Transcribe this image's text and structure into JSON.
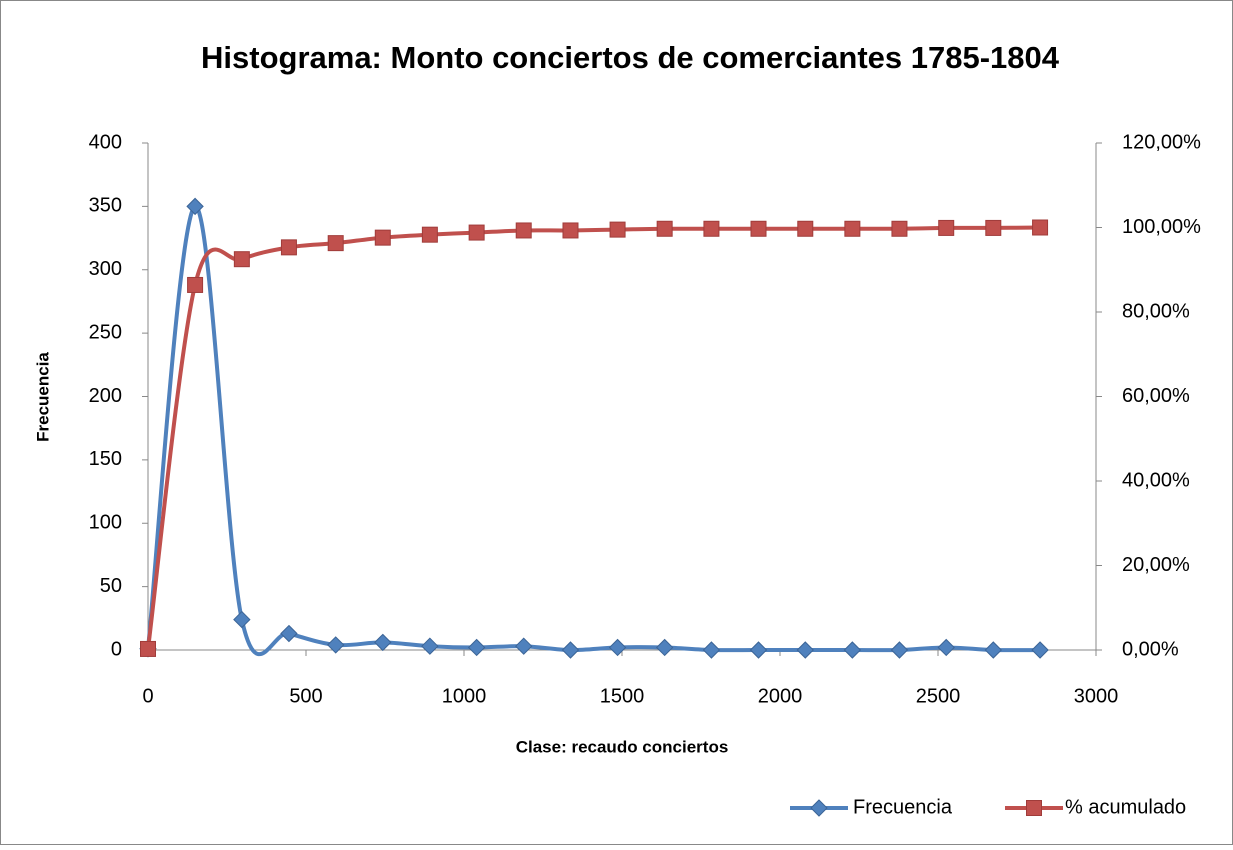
{
  "chart_data": {
    "type": "line",
    "title": "Histograma:  Monto conciertos de comerciantes 1785-1804",
    "x_label": "Clase: recaudo conciertos",
    "y_label": "Frecuencia",
    "x": [
      0,
      149,
      297,
      446,
      594,
      743,
      892,
      1040,
      1189,
      1337,
      1486,
      1635,
      1783,
      1932,
      2080,
      2229,
      2378,
      2526,
      2675,
      2823
    ],
    "series": [
      {
        "name": "Frecuencia",
        "color": "#4f81bd",
        "marker": "diamond",
        "axis": "y",
        "values": [
          1,
          350,
          24,
          13,
          4,
          6,
          3,
          2,
          3,
          0,
          2,
          2,
          0,
          0,
          0,
          0,
          0,
          2,
          0,
          0
        ]
      },
      {
        "name": "% acumulado",
        "color": "#c0504d",
        "marker": "square",
        "axis": "y2",
        "values": [
          0.25,
          86.4,
          92.5,
          95.3,
          96.3,
          97.6,
          98.3,
          98.8,
          99.3,
          99.3,
          99.5,
          99.7,
          99.7,
          99.7,
          99.7,
          99.7,
          99.7,
          99.9,
          99.9,
          100
        ]
      }
    ],
    "xlim": [
      0,
      3000
    ],
    "xticks": [
      0,
      500,
      1000,
      1500,
      2000,
      2500,
      3000
    ],
    "ylim": [
      0,
      400
    ],
    "yticks": [
      0,
      50,
      100,
      150,
      200,
      250,
      300,
      350,
      400
    ],
    "y2lim": [
      0,
      120
    ],
    "y2ticks": [
      {
        "value": 0,
        "label": "0,00%"
      },
      {
        "value": 20,
        "label": "20,00%"
      },
      {
        "value": 40,
        "label": "40,00%"
      },
      {
        "value": 60,
        "label": "60,00%"
      },
      {
        "value": 80,
        "label": "80,00%"
      },
      {
        "value": 100,
        "label": "100,00%"
      },
      {
        "value": 120,
        "label": "120,00%"
      }
    ],
    "legend": "bottom-right",
    "smooth": true
  }
}
